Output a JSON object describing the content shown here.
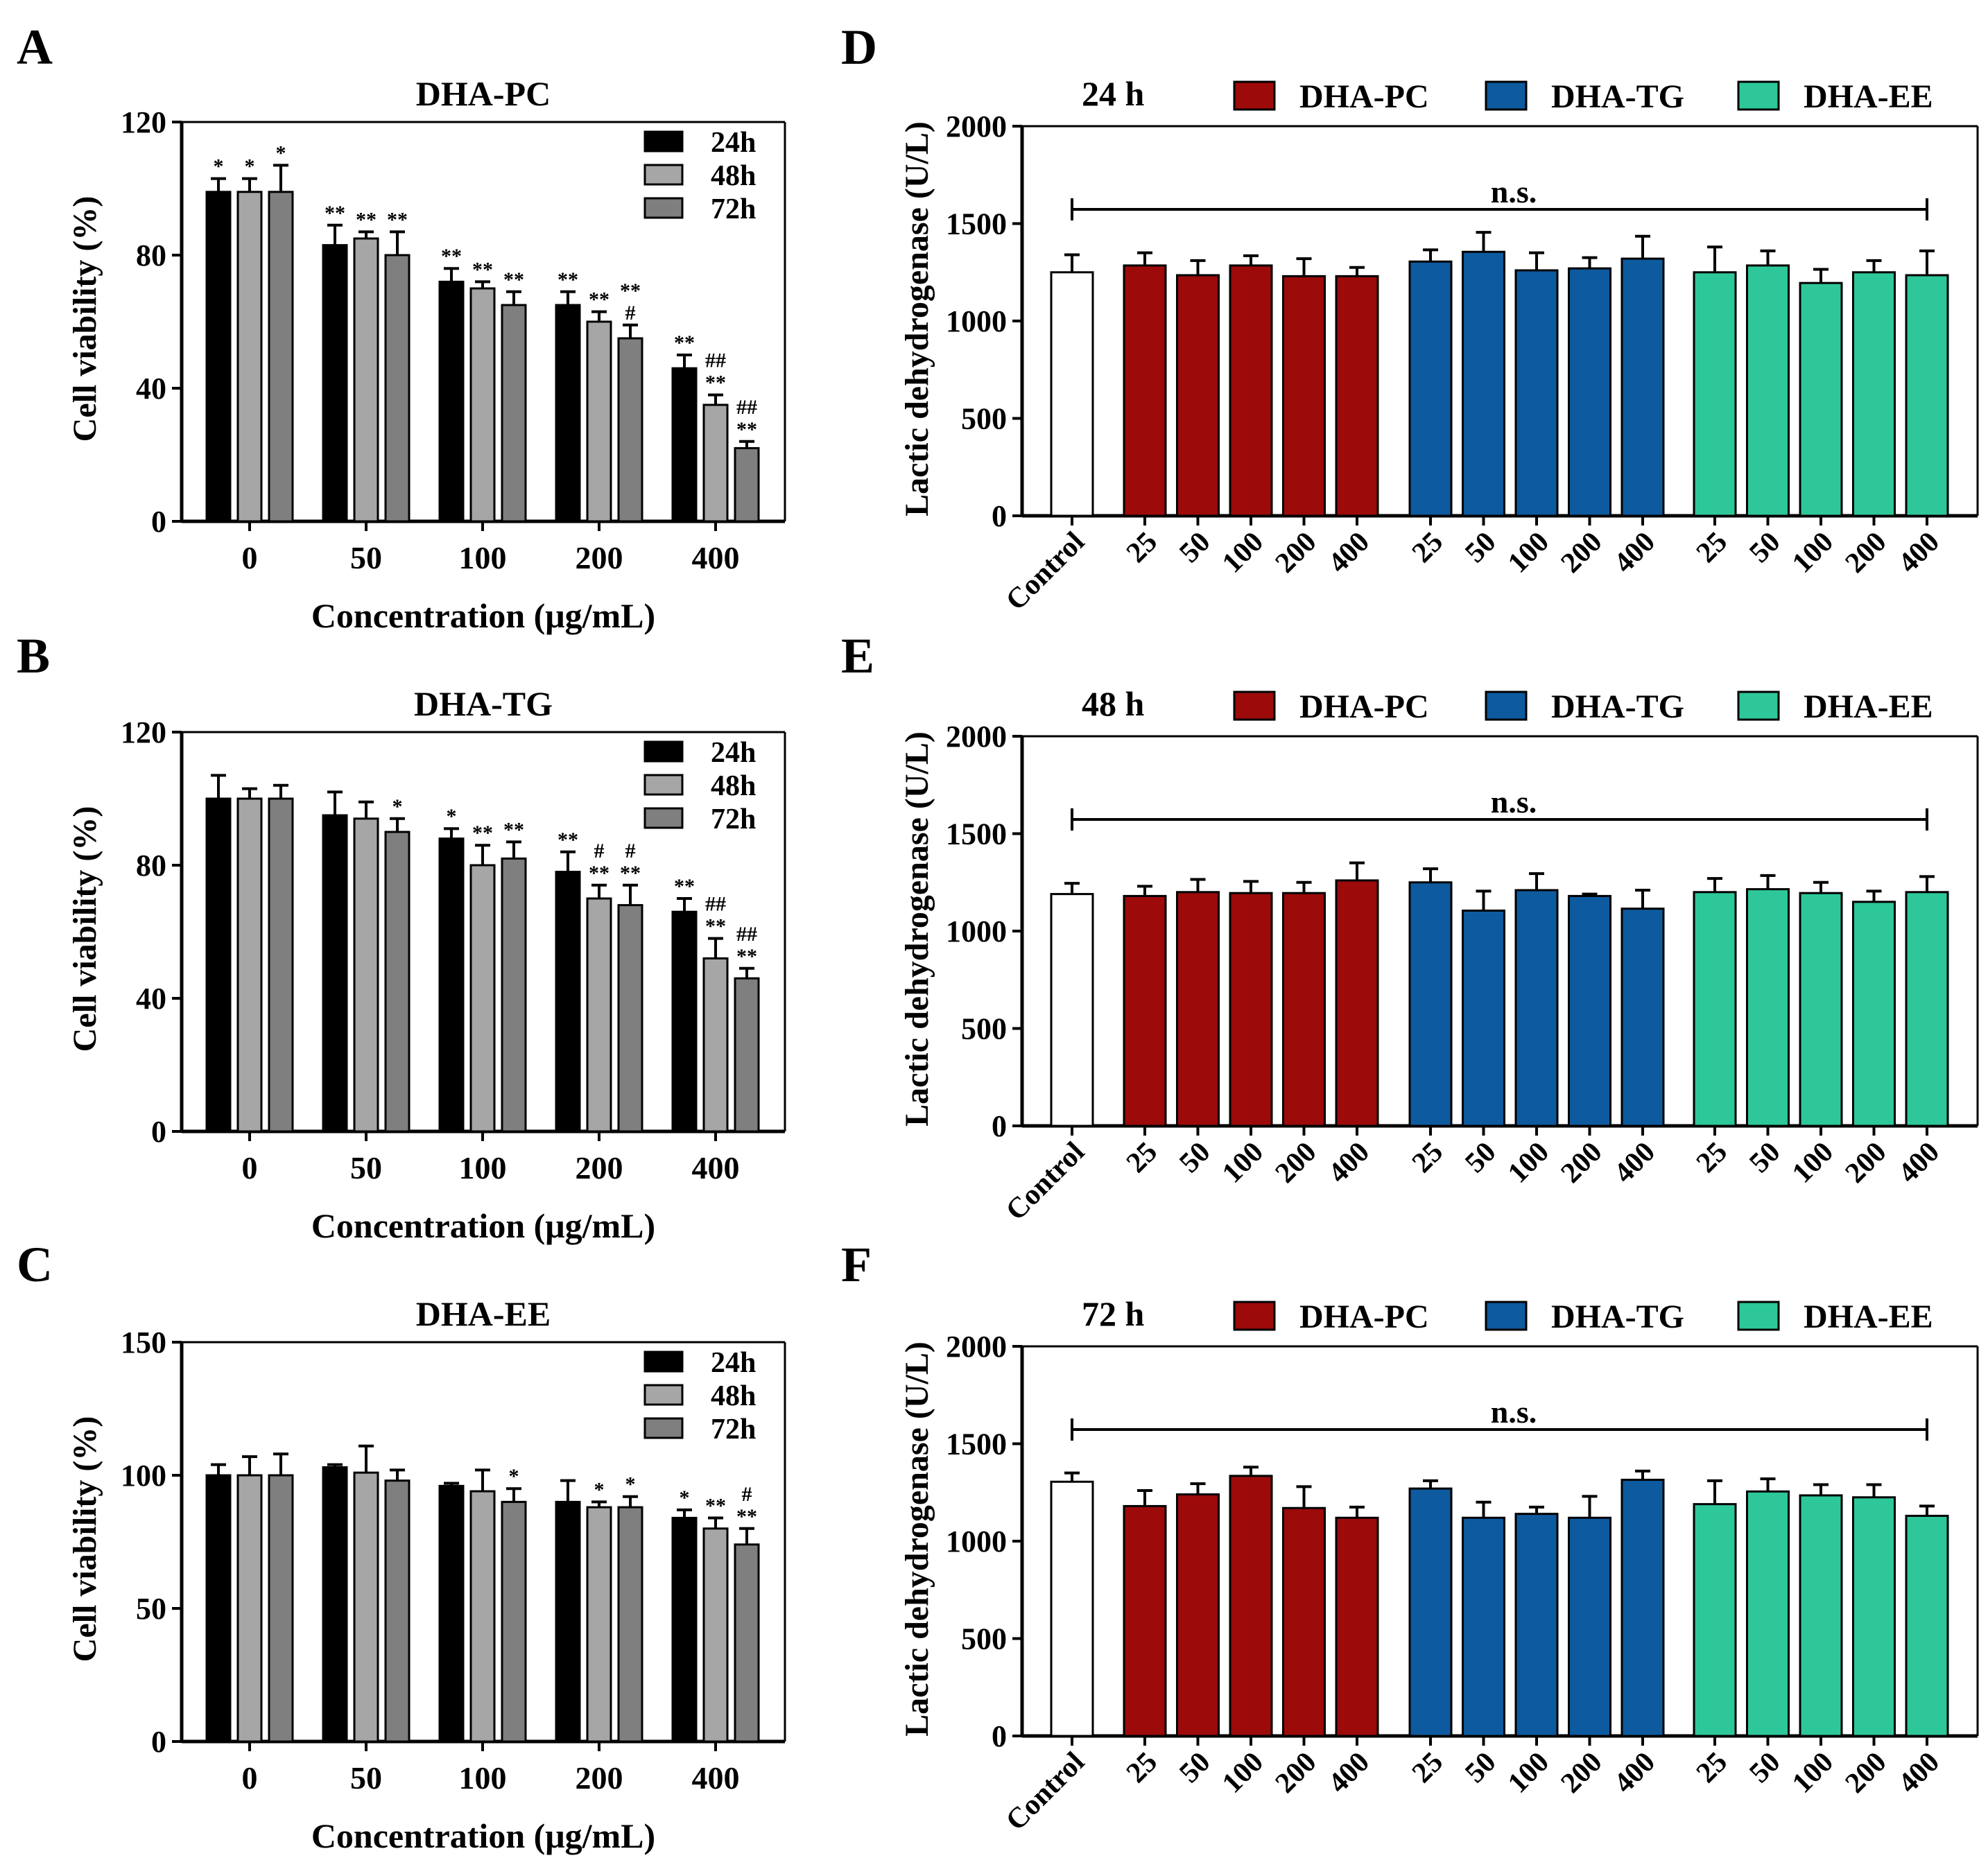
{
  "colors": {
    "black24": "#000000",
    "grey48": "#A6A6A6",
    "grey72": "#7F7F7F",
    "control": "#FFFFFF",
    "pc": "#9C0A0A",
    "tg": "#0E5A9E",
    "ee": "#2EC79A"
  },
  "chart_data": [
    {
      "panel": "A",
      "type": "bar",
      "title": "DHA-PC",
      "xlabel": "Concentration (μg/mL)",
      "ylabel": "Cell viability (%)",
      "ylim": [
        0,
        120
      ],
      "yticks": [
        0,
        40,
        80,
        120
      ],
      "categories": [
        "0",
        "50",
        "100",
        "200",
        "400"
      ],
      "legend": [
        "24h",
        "48h",
        "72h"
      ],
      "series": [
        {
          "name": "24h",
          "values": [
            99,
            83,
            72,
            65,
            46
          ],
          "errors": [
            4,
            6,
            4,
            4,
            4
          ]
        },
        {
          "name": "48h",
          "values": [
            99,
            85,
            70,
            60,
            35
          ],
          "errors": [
            4,
            2,
            2,
            3,
            3
          ]
        },
        {
          "name": "72h",
          "values": [
            99,
            80,
            65,
            55,
            22
          ],
          "errors": [
            8,
            7,
            4,
            4,
            2
          ]
        }
      ],
      "annotations": [
        [
          "*",
          "*",
          "*"
        ],
        [
          "**",
          "**",
          "**"
        ],
        [
          "**",
          "**",
          "**"
        ],
        [
          "**",
          "**",
          "**"
        ],
        [
          "**",
          "##",
          "##"
        ]
      ],
      "annotations2": [
        [
          "",
          "",
          ""
        ],
        [
          "",
          "",
          ""
        ],
        [
          "",
          "",
          ""
        ],
        [
          "",
          "",
          "#"
        ],
        [
          "",
          "**",
          "**"
        ]
      ]
    },
    {
      "panel": "B",
      "type": "bar",
      "title": "DHA-TG",
      "xlabel": "Concentration (μg/mL)",
      "ylabel": "Cell viability (%)",
      "ylim": [
        0,
        120
      ],
      "yticks": [
        0,
        40,
        80,
        120
      ],
      "categories": [
        "0",
        "50",
        "100",
        "200",
        "400"
      ],
      "legend": [
        "24h",
        "48h",
        "72h"
      ],
      "series": [
        {
          "name": "24h",
          "values": [
            100,
            95,
            88,
            78,
            66
          ],
          "errors": [
            7,
            7,
            3,
            6,
            4
          ]
        },
        {
          "name": "48h",
          "values": [
            100,
            94,
            80,
            70,
            52
          ],
          "errors": [
            3,
            5,
            6,
            4,
            6
          ]
        },
        {
          "name": "72h",
          "values": [
            100,
            90,
            82,
            68,
            46
          ],
          "errors": [
            4,
            4,
            5,
            6,
            3
          ]
        }
      ],
      "annotations": [
        [
          "",
          "",
          ""
        ],
        [
          "",
          "",
          "*"
        ],
        [
          "*",
          "**",
          "**"
        ],
        [
          "**",
          "#",
          "#"
        ],
        [
          "**",
          "##",
          "##"
        ]
      ],
      "annotations2": [
        [
          "",
          "",
          ""
        ],
        [
          "",
          "",
          ""
        ],
        [
          "",
          "",
          ""
        ],
        [
          "",
          "**",
          "**"
        ],
        [
          "",
          "**",
          "**"
        ]
      ]
    },
    {
      "panel": "C",
      "type": "bar",
      "title": "DHA-EE",
      "xlabel": "Concentration (μg/mL)",
      "ylabel": "Cell viability (%)",
      "ylim": [
        0,
        150
      ],
      "yticks": [
        0,
        50,
        100,
        150
      ],
      "categories": [
        "0",
        "50",
        "100",
        "200",
        "400"
      ],
      "legend": [
        "24h",
        "48h",
        "72h"
      ],
      "series": [
        {
          "name": "24h",
          "values": [
            100,
            103,
            96,
            90,
            84
          ],
          "errors": [
            4,
            1,
            1,
            8,
            3
          ]
        },
        {
          "name": "48h",
          "values": [
            100,
            101,
            94,
            88,
            80
          ],
          "errors": [
            7,
            10,
            8,
            2,
            4
          ]
        },
        {
          "name": "72h",
          "values": [
            100,
            98,
            90,
            88,
            74
          ],
          "errors": [
            8,
            4,
            5,
            4,
            6
          ]
        }
      ],
      "annotations": [
        [
          "",
          "",
          ""
        ],
        [
          "",
          "",
          ""
        ],
        [
          "",
          "",
          "*"
        ],
        [
          "",
          "*",
          "*"
        ],
        [
          "*",
          "**",
          "#"
        ]
      ],
      "annotations2": [
        [
          "",
          "",
          ""
        ],
        [
          "",
          "",
          ""
        ],
        [
          "",
          "",
          ""
        ],
        [
          "",
          "",
          ""
        ],
        [
          "",
          "",
          "**"
        ]
      ]
    },
    {
      "panel": "D",
      "type": "bar",
      "title": "24 h",
      "ylabel": "Lactic dehydrogenase (U/L)",
      "ylim": [
        0,
        2000
      ],
      "yticks": [
        0,
        500,
        1000,
        1500,
        2000
      ],
      "legend": [
        "DHA-PC",
        "DHA-TG",
        "DHA-EE"
      ],
      "significance": "n.s.",
      "control": {
        "label": "Control",
        "value": 1250,
        "error": 90
      },
      "groups": [
        {
          "name": "DHA-PC",
          "categories": [
            "25",
            "50",
            "100",
            "200",
            "400"
          ],
          "values": [
            1285,
            1235,
            1285,
            1230,
            1230
          ],
          "errors": [
            65,
            75,
            50,
            90,
            45
          ]
        },
        {
          "name": "DHA-TG",
          "categories": [
            "25",
            "50",
            "100",
            "200",
            "400"
          ],
          "values": [
            1305,
            1355,
            1260,
            1270,
            1320
          ],
          "errors": [
            60,
            100,
            90,
            55,
            115
          ]
        },
        {
          "name": "DHA-EE",
          "categories": [
            "25",
            "50",
            "100",
            "200",
            "400"
          ],
          "values": [
            1250,
            1285,
            1195,
            1250,
            1235
          ],
          "errors": [
            130,
            75,
            70,
            60,
            125
          ]
        }
      ]
    },
    {
      "panel": "E",
      "type": "bar",
      "title": "48 h",
      "ylabel": "Lactic dehydrogenase (U/L)",
      "ylim": [
        0,
        2000
      ],
      "yticks": [
        0,
        500,
        1000,
        1500,
        2000
      ],
      "legend": [
        "DHA-PC",
        "DHA-TG",
        "DHA-EE"
      ],
      "significance": "n.s.",
      "control": {
        "label": "Control",
        "value": 1190,
        "error": 55
      },
      "groups": [
        {
          "name": "DHA-PC",
          "categories": [
            "25",
            "50",
            "100",
            "200",
            "400"
          ],
          "values": [
            1180,
            1200,
            1195,
            1195,
            1260
          ],
          "errors": [
            50,
            65,
            60,
            55,
            90
          ]
        },
        {
          "name": "DHA-TG",
          "categories": [
            "25",
            "50",
            "100",
            "200",
            "400"
          ],
          "values": [
            1250,
            1105,
            1210,
            1180,
            1115
          ],
          "errors": [
            70,
            100,
            85,
            10,
            95
          ]
        },
        {
          "name": "DHA-EE",
          "categories": [
            "25",
            "50",
            "100",
            "200",
            "400"
          ],
          "values": [
            1200,
            1215,
            1195,
            1150,
            1200
          ],
          "errors": [
            70,
            70,
            55,
            55,
            80
          ]
        }
      ]
    },
    {
      "panel": "F",
      "type": "bar",
      "title": "72 h",
      "ylabel": "Lactic dehydrogenase (U/L)",
      "ylim": [
        0,
        2000
      ],
      "yticks": [
        0,
        500,
        1000,
        1500,
        2000
      ],
      "legend": [
        "DHA-PC",
        "DHA-TG",
        "DHA-EE"
      ],
      "significance": "n.s.",
      "control": {
        "label": "Control",
        "value": 1305,
        "error": 45
      },
      "groups": [
        {
          "name": "DHA-PC",
          "categories": [
            "25",
            "50",
            "100",
            "200",
            "400"
          ],
          "values": [
            1180,
            1240,
            1335,
            1170,
            1120
          ],
          "errors": [
            80,
            55,
            45,
            110,
            55
          ]
        },
        {
          "name": "DHA-TG",
          "categories": [
            "25",
            "50",
            "100",
            "200",
            "400"
          ],
          "values": [
            1270,
            1120,
            1140,
            1120,
            1315
          ],
          "errors": [
            40,
            80,
            35,
            110,
            45
          ]
        },
        {
          "name": "DHA-EE",
          "categories": [
            "25",
            "50",
            "100",
            "200",
            "400"
          ],
          "values": [
            1190,
            1255,
            1235,
            1225,
            1130
          ],
          "errors": [
            120,
            65,
            55,
            65,
            50
          ]
        }
      ]
    }
  ]
}
